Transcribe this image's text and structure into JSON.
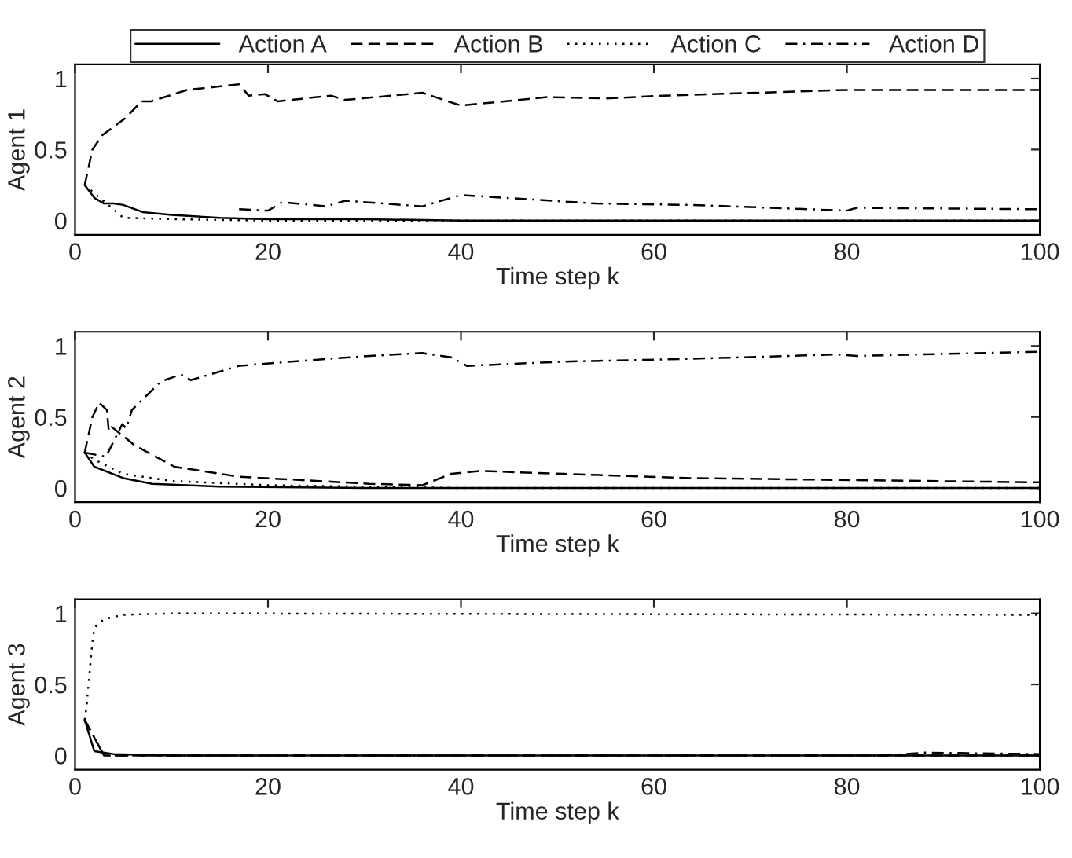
{
  "chart_data": [
    {
      "type": "line",
      "xlabel": "Time step k",
      "ylabel": "Agent 1",
      "xlim": [
        0,
        100
      ],
      "ylim": [
        -0.1,
        1.1
      ],
      "xticks": [
        0,
        20,
        40,
        60,
        80,
        100
      ],
      "yticks": [
        0,
        0.5,
        1
      ],
      "grid": false,
      "legend": "top",
      "marker": "none",
      "series": [
        {
          "name": "Action A",
          "color": "#000000",
          "line_style": "solid",
          "x": [
            1,
            2,
            3,
            4,
            5,
            7,
            10,
            15,
            20,
            30,
            40,
            60,
            80,
            100
          ],
          "values": [
            0.25,
            0.16,
            0.12,
            0.12,
            0.11,
            0.06,
            0.04,
            0.02,
            0.01,
            0.01,
            0,
            0,
            0,
            0
          ]
        },
        {
          "name": "Action B",
          "color": "#000000",
          "line_style": "dashed",
          "x": [
            1,
            1.8,
            2.8,
            5.2,
            6.9,
            7.9,
            11.6,
            17,
            18,
            19.7,
            21,
            26.5,
            28,
            36,
            40,
            49,
            55,
            61,
            80,
            100
          ],
          "values": [
            0.25,
            0.5,
            0.6,
            0.72,
            0.84,
            0.84,
            0.92,
            0.96,
            0.88,
            0.89,
            0.84,
            0.88,
            0.85,
            0.9,
            0.81,
            0.87,
            0.86,
            0.88,
            0.92,
            0.92
          ]
        },
        {
          "name": "Action C",
          "color": "#000000",
          "line_style": "dotted",
          "x": [
            1,
            5,
            10,
            20,
            100
          ],
          "values": [
            0.25,
            0.02,
            0.01,
            0,
            0
          ]
        },
        {
          "name": "Action D",
          "color": "#000000",
          "line_style": "dashdot",
          "x": [
            17,
            20,
            21.5,
            26,
            28,
            36,
            40,
            54,
            64,
            80,
            81,
            100
          ],
          "values": [
            0.08,
            0.07,
            0.13,
            0.1,
            0.14,
            0.1,
            0.18,
            0.12,
            0.11,
            0.07,
            0.09,
            0.08
          ]
        }
      ]
    },
    {
      "type": "line",
      "xlabel": "Time step k",
      "ylabel": "Agent 2",
      "xlim": [
        0,
        100
      ],
      "ylim": [
        -0.1,
        1.1
      ],
      "xticks": [
        0,
        20,
        40,
        60,
        80,
        100
      ],
      "yticks": [
        0,
        0.5,
        1
      ],
      "grid": false,
      "marker": "none",
      "series": [
        {
          "color": "#000000",
          "line_style": "solid",
          "x": [
            1,
            2,
            5,
            8,
            15,
            30,
            100
          ],
          "values": [
            0.25,
            0.15,
            0.07,
            0.03,
            0.01,
            0,
            0
          ]
        },
        {
          "color": "#000000",
          "line_style": "dashed",
          "x": [
            1,
            1.8,
            2.5,
            3.3,
            3.5,
            3.8,
            6.2,
            10.3,
            17,
            30.5,
            36,
            39,
            42,
            50.7,
            64,
            100
          ],
          "values": [
            0.25,
            0.5,
            0.6,
            0.55,
            0.4,
            0.43,
            0.3,
            0.15,
            0.08,
            0.03,
            0.02,
            0.1,
            0.12,
            0.1,
            0.07,
            0.04
          ]
        },
        {
          "color": "#000000",
          "line_style": "dotted",
          "x": [
            1,
            2,
            5,
            10,
            20,
            40,
            100
          ],
          "values": [
            0.25,
            0.2,
            0.1,
            0.05,
            0.02,
            0,
            0
          ]
        },
        {
          "color": "#000000",
          "line_style": "dashdot",
          "x": [
            1,
            3.2,
            4.9,
            5.3,
            5.9,
            8.9,
            11,
            12,
            17,
            22.4,
            30.5,
            36,
            39,
            40.6,
            50.7,
            64,
            79,
            81,
            100
          ],
          "values": [
            0.25,
            0.22,
            0.45,
            0.42,
            0.55,
            0.75,
            0.8,
            0.76,
            0.86,
            0.89,
            0.93,
            0.95,
            0.92,
            0.86,
            0.89,
            0.91,
            0.94,
            0.93,
            0.96
          ]
        }
      ]
    },
    {
      "type": "line",
      "xlabel": "Time step k",
      "ylabel": "Agent 3",
      "xlim": [
        0,
        100
      ],
      "ylim": [
        -0.1,
        1.1
      ],
      "xticks": [
        0,
        20,
        40,
        60,
        80,
        100
      ],
      "yticks": [
        0,
        0.5,
        1
      ],
      "grid": false,
      "marker": "none",
      "series": [
        {
          "color": "#000000",
          "line_style": "solid",
          "x": [
            1,
            2,
            4,
            10,
            100
          ],
          "values": [
            0.25,
            0.03,
            0.01,
            0,
            0
          ]
        },
        {
          "color": "#000000",
          "line_style": "dashed",
          "x": [
            1,
            3,
            100
          ],
          "values": [
            0.25,
            0,
            0
          ]
        },
        {
          "color": "#000000",
          "line_style": "dotted",
          "x": [
            1,
            1.2,
            1.8,
            2,
            3,
            5,
            10,
            100
          ],
          "values": [
            0.25,
            0.35,
            0.8,
            0.9,
            0.96,
            0.99,
            1,
            0.99
          ]
        },
        {
          "color": "#000000",
          "line_style": "dashdot",
          "x": [
            1,
            3,
            84,
            88,
            100
          ],
          "values": [
            0.25,
            0,
            0,
            0.02,
            0.01
          ]
        }
      ]
    }
  ]
}
